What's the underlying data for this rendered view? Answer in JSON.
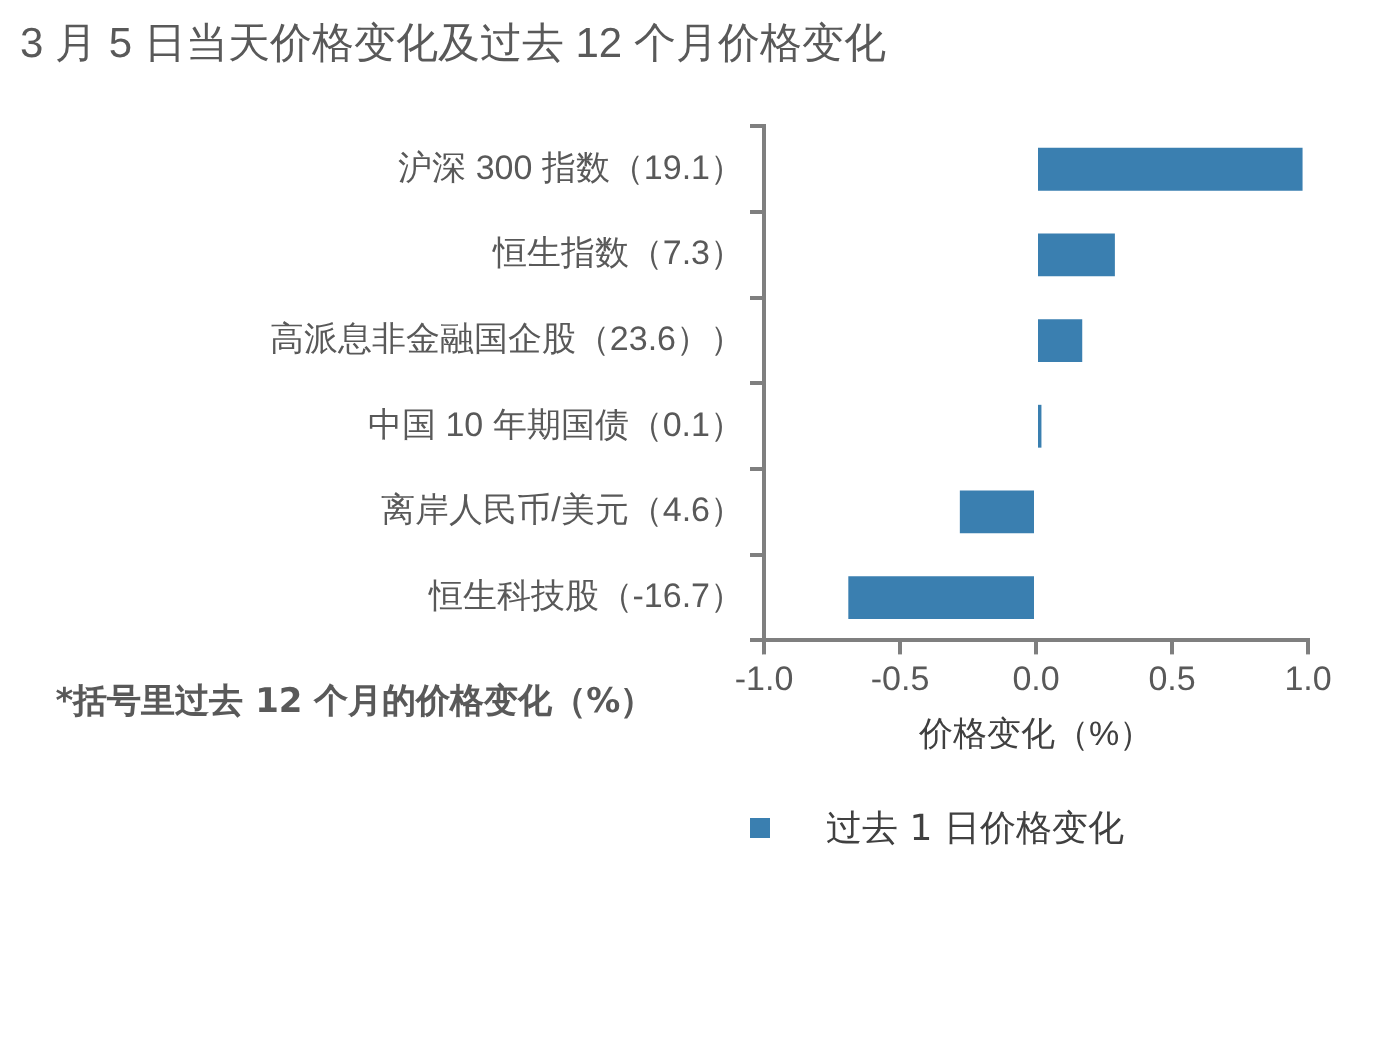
{
  "chart_data": {
    "type": "bar",
    "orientation": "horizontal",
    "title": "3 月 5 日当天价格变化及过去 12 个月价格变化",
    "xlabel": "价格变化（%）",
    "categories": [
      "沪深 300 指数（19.1）",
      "恒生指数（7.3）",
      "高派息非金融国企股（23.6））",
      "中国 10 年期国债（0.1）",
      "离岸人民币/美元（4.6）",
      "恒生科技股（-16.7）"
    ],
    "series": [
      {
        "name": "过去 1 日价格变化",
        "color": "#3a7fb0",
        "values": [
          0.98,
          0.29,
          0.17,
          0.02,
          -0.28,
          -0.69
        ]
      }
    ],
    "xlim": [
      -1,
      1
    ],
    "xticks": [
      {
        "value": -1,
        "label": "-1.0"
      },
      {
        "value": -0.5,
        "label": "-0.5"
      },
      {
        "value": 0,
        "label": "0.0"
      },
      {
        "value": 0.5,
        "label": "0.5"
      },
      {
        "value": 1,
        "label": "1.0"
      }
    ],
    "grid": false,
    "legend": "bottom",
    "annotations": [
      "*括号里过去 12 个月的价格变化（%）"
    ]
  }
}
